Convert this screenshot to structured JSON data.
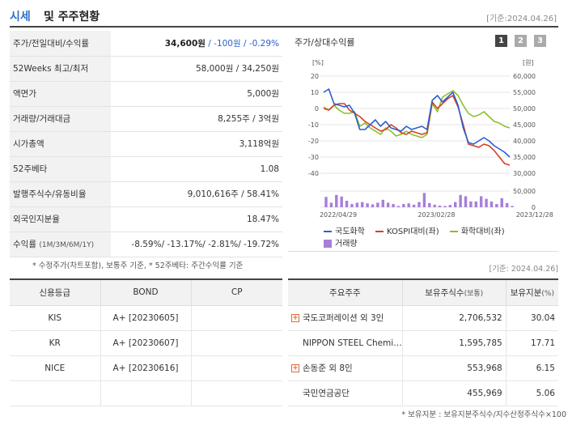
{
  "header": {
    "title_colored": "시세",
    "title_rest": "및 주주현황",
    "date": "[기준:2024.04.26]"
  },
  "info_rows": [
    {
      "label": "주가/전일대비/수익률",
      "price": "34,600원",
      "change": " / -100원 / -0.29%"
    },
    {
      "label": "52Weeks 최고/최저",
      "value": "58,000원 / 34,250원"
    },
    {
      "label": "액면가",
      "value": "5,000원"
    },
    {
      "label": "거래량/거래대금",
      "value": "8,255주 / 3억원"
    },
    {
      "label": "시가총액",
      "value": "3,118억원"
    },
    {
      "label": "52주베타",
      "value": "1.08"
    },
    {
      "label": "발행주식수/유동비율",
      "value": "9,010,616주 / 58.41%"
    },
    {
      "label": "외국인지분율",
      "value": "18.47%"
    },
    {
      "label": "수익률",
      "label_sub": "(1M/3M/6M/1Y)",
      "value": "-8.59%/ -13.17%/ -2.81%/ -19.72%"
    }
  ],
  "note1": "* 수정주가(차트포함), 보통주 기준, * 52주베타: 주간수익률 기준",
  "chart": {
    "title": "주가/상대수익률",
    "pages": [
      "1",
      "2",
      "3"
    ],
    "left_unit": "[%]",
    "right_unit": "[원]",
    "legend": {
      "s1": "국도화학",
      "s2": "KOSPI대비(좌)",
      "s3": "화학대비(좌)",
      "vol": "거래량"
    },
    "colors": {
      "s1": "#2a5fd0",
      "s2": "#d6401e",
      "s3": "#8cbf2e",
      "vol": "#a77fd8"
    }
  },
  "chart_data": {
    "type": "line",
    "x_ticks": [
      "2022/04/29",
      "2023/02/28",
      "2023/12/28"
    ],
    "x_tick_index": [
      0,
      19,
      38
    ],
    "left_axis": {
      "ticks": [
        20,
        10,
        0,
        -10,
        -20,
        -30,
        -40
      ],
      "range": [
        -40,
        20
      ]
    },
    "right_axis": {
      "ticks": [
        "60,000",
        "55,000",
        "50,000",
        "45,000",
        "40,000",
        "35,000",
        "30,000"
      ],
      "range": [
        30000,
        60000
      ]
    },
    "volume_axis": {
      "ticks": [
        "50,000",
        "0"
      ],
      "range": [
        0,
        50000
      ]
    },
    "series": [
      {
        "name": "국도화학",
        "axis": "left",
        "values": [
          10,
          12,
          3,
          2,
          1,
          2,
          -3,
          -13,
          -13,
          -10,
          -7,
          -11,
          -8,
          -12,
          -13,
          -14,
          -11,
          -13,
          -12,
          -11,
          -13,
          5,
          8,
          4,
          7,
          10,
          2,
          -12,
          -21,
          -22,
          -20,
          -18,
          -20,
          -23,
          -25,
          -27,
          -30
        ]
      },
      {
        "name": "KOSPI대비(좌)",
        "axis": "left",
        "values": [
          0,
          -1,
          2,
          3,
          3,
          -1,
          -3,
          -5,
          -8,
          -10,
          -12,
          -14,
          -13,
          -10,
          -12,
          -15,
          -16,
          -14,
          -15,
          -16,
          -15,
          4,
          0,
          3,
          6,
          8,
          1,
          -10,
          -22,
          -23,
          -24,
          -22,
          -23,
          -26,
          -30,
          -34,
          -35
        ]
      },
      {
        "name": "화학대비(좌)",
        "axis": "left",
        "values": [
          1,
          -1,
          2,
          -1,
          -3,
          -3,
          -2,
          -11,
          -9,
          -12,
          -14,
          -16,
          -12,
          -14,
          -17,
          -16,
          -14,
          -16,
          -17,
          -18,
          -16,
          3,
          -2,
          7,
          9,
          11,
          8,
          2,
          -3,
          -5,
          -4,
          -2,
          -5,
          -8,
          -9,
          -11,
          -12
        ]
      }
    ],
    "volume": [
      32000,
      14000,
      38000,
      33000,
      20000,
      10000,
      14000,
      16000,
      12000,
      9000,
      14000,
      23000,
      14000,
      10000,
      4000,
      10000,
      12000,
      8000,
      16000,
      44000,
      13000,
      8000,
      5000,
      4000,
      7000,
      16000,
      38000,
      34000,
      18000,
      18000,
      34000,
      26000,
      18000,
      10000,
      28000,
      13000,
      4000
    ]
  },
  "date2": "[기준: 2024.04.26]",
  "credit": {
    "headers": [
      "신용등급",
      "BOND",
      "CP"
    ],
    "rows": [
      {
        "agency": "KIS",
        "bond": "A+  [20230605]",
        "cp": ""
      },
      {
        "agency": "KR",
        "bond": "A+  [20230607]",
        "cp": ""
      },
      {
        "agency": "NICE",
        "bond": "A+  [20230616]",
        "cp": ""
      },
      {
        "agency": "",
        "bond": "",
        "cp": ""
      }
    ]
  },
  "shareholders": {
    "headers": {
      "h1": "주요주주",
      "h2": "보유주식수",
      "h2_sub": "(보통)",
      "h3": "보유지분",
      "h3_sub": "(%)"
    },
    "rows": [
      {
        "name": "국도코퍼레이션 외 3인",
        "shares": "2,706,532",
        "pct": "30.04",
        "expandable": true
      },
      {
        "name": "NIPPON STEEL Chemi…",
        "shares": "1,595,785",
        "pct": "17.71",
        "expandable": false
      },
      {
        "name": "손동준 외 8인",
        "shares": "553,968",
        "pct": "6.15",
        "expandable": true
      },
      {
        "name": "국민연금공단",
        "shares": "455,969",
        "pct": "5.06",
        "expandable": false
      }
    ],
    "expand_glyph": "+"
  },
  "note2": "* 보유지분 : 보유지분주식수/지수산정주식수×100"
}
